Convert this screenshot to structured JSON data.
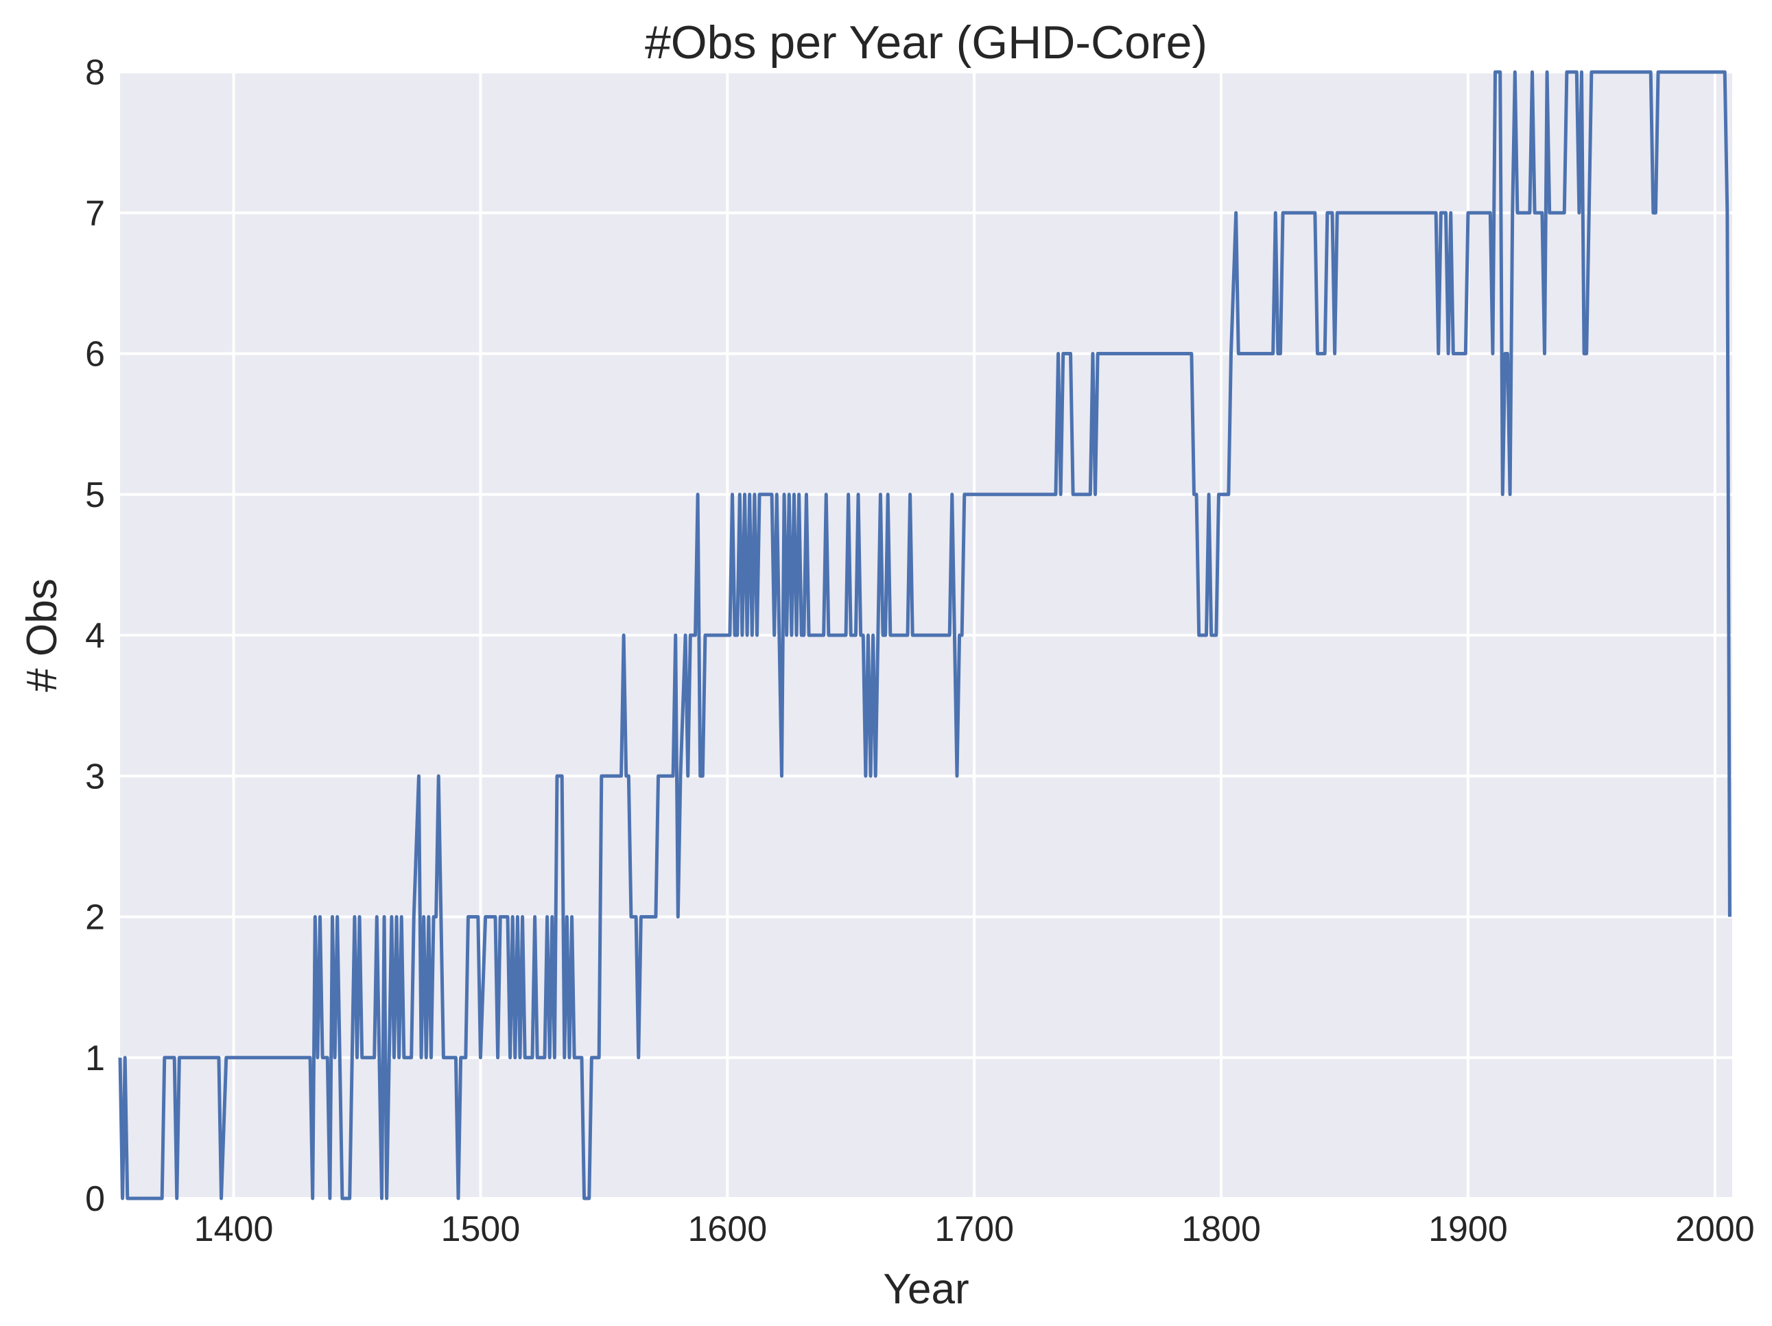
{
  "colors": {
    "plot_background": "#eaeaf2",
    "grid": "#ffffff",
    "line": "#4c72b0",
    "text": "#262626"
  },
  "chart_data": {
    "type": "line",
    "title": "#Obs per Year (GHD-Core)",
    "xlabel": "Year",
    "ylabel": "# Obs",
    "xlim": [
      1354,
      2007
    ],
    "ylim": [
      0,
      8
    ],
    "grid": true,
    "xticks": [
      1400,
      1500,
      1600,
      1700,
      1800,
      1900,
      2000
    ],
    "yticks": [
      0,
      1,
      2,
      3,
      4,
      5,
      6,
      7,
      8
    ],
    "series": [
      {
        "values": [
          [
            1354,
            1
          ],
          [
            1355,
            0
          ],
          [
            1356,
            1
          ],
          [
            1357,
            0
          ],
          [
            1371,
            0
          ],
          [
            1372,
            1
          ],
          [
            1376,
            1
          ],
          [
            1377,
            0
          ],
          [
            1378,
            1
          ],
          [
            1394,
            1
          ],
          [
            1395,
            0
          ],
          [
            1397,
            1
          ],
          [
            1431,
            1
          ],
          [
            1432,
            0
          ],
          [
            1433,
            2
          ],
          [
            1434,
            1
          ],
          [
            1435,
            2
          ],
          [
            1436,
            1
          ],
          [
            1438,
            1
          ],
          [
            1439,
            0
          ],
          [
            1440,
            2
          ],
          [
            1441,
            1
          ],
          [
            1442,
            2
          ],
          [
            1443,
            1
          ],
          [
            1444,
            0
          ],
          [
            1447,
            0
          ],
          [
            1448,
            1
          ],
          [
            1449,
            2
          ],
          [
            1450,
            1
          ],
          [
            1451,
            2
          ],
          [
            1452,
            1
          ],
          [
            1457,
            1
          ],
          [
            1458,
            2
          ],
          [
            1459,
            1
          ],
          [
            1460,
            0
          ],
          [
            1461,
            2
          ],
          [
            1462,
            0
          ],
          [
            1463,
            1
          ],
          [
            1464,
            2
          ],
          [
            1465,
            1
          ],
          [
            1466,
            2
          ],
          [
            1467,
            1
          ],
          [
            1468,
            2
          ],
          [
            1469,
            1
          ],
          [
            1472,
            1
          ],
          [
            1473,
            2
          ],
          [
            1475,
            3
          ],
          [
            1476,
            1
          ],
          [
            1477,
            2
          ],
          [
            1478,
            1
          ],
          [
            1479,
            2
          ],
          [
            1480,
            1
          ],
          [
            1481,
            2
          ],
          [
            1482,
            2
          ],
          [
            1483,
            3
          ],
          [
            1484,
            2
          ],
          [
            1485,
            1
          ],
          [
            1490,
            1
          ],
          [
            1491,
            0
          ],
          [
            1492,
            1
          ],
          [
            1494,
            1
          ],
          [
            1495,
            2
          ],
          [
            1499,
            2
          ],
          [
            1500,
            1
          ],
          [
            1502,
            2
          ],
          [
            1506,
            2
          ],
          [
            1507,
            1
          ],
          [
            1508,
            2
          ],
          [
            1511,
            2
          ],
          [
            1512,
            1
          ],
          [
            1513,
            2
          ],
          [
            1514,
            1
          ],
          [
            1515,
            2
          ],
          [
            1516,
            1
          ],
          [
            1517,
            2
          ],
          [
            1518,
            1
          ],
          [
            1521,
            1
          ],
          [
            1522,
            2
          ],
          [
            1523,
            1
          ],
          [
            1526,
            1
          ],
          [
            1527,
            2
          ],
          [
            1528,
            1
          ],
          [
            1529,
            2
          ],
          [
            1530,
            1
          ],
          [
            1531,
            3
          ],
          [
            1533,
            3
          ],
          [
            1534,
            1
          ],
          [
            1535,
            2
          ],
          [
            1536,
            1
          ],
          [
            1537,
            2
          ],
          [
            1538,
            1
          ],
          [
            1541,
            1
          ],
          [
            1542,
            0
          ],
          [
            1544,
            0
          ],
          [
            1545,
            1
          ],
          [
            1548,
            1
          ],
          [
            1549,
            3
          ],
          [
            1557,
            3
          ],
          [
            1558,
            4
          ],
          [
            1559,
            3
          ],
          [
            1560,
            3
          ],
          [
            1561,
            2
          ],
          [
            1563,
            2
          ],
          [
            1564,
            1
          ],
          [
            1565,
            2
          ],
          [
            1571,
            2
          ],
          [
            1572,
            3
          ],
          [
            1578,
            3
          ],
          [
            1579,
            4
          ],
          [
            1580,
            2
          ],
          [
            1581,
            3
          ],
          [
            1583,
            4
          ],
          [
            1584,
            3
          ],
          [
            1585,
            4
          ],
          [
            1587,
            4
          ],
          [
            1588,
            5
          ],
          [
            1589,
            3
          ],
          [
            1590,
            3
          ],
          [
            1591,
            4
          ],
          [
            1601,
            4
          ],
          [
            1602,
            5
          ],
          [
            1603,
            4
          ],
          [
            1604,
            4
          ],
          [
            1605,
            5
          ],
          [
            1606,
            4
          ],
          [
            1607,
            5
          ],
          [
            1608,
            4
          ],
          [
            1609,
            5
          ],
          [
            1610,
            4
          ],
          [
            1611,
            5
          ],
          [
            1612,
            4
          ],
          [
            1613,
            5
          ],
          [
            1618,
            5
          ],
          [
            1619,
            4
          ],
          [
            1620,
            5
          ],
          [
            1621,
            4
          ],
          [
            1622,
            3
          ],
          [
            1623,
            5
          ],
          [
            1624,
            4
          ],
          [
            1625,
            5
          ],
          [
            1626,
            4
          ],
          [
            1627,
            5
          ],
          [
            1628,
            4
          ],
          [
            1629,
            5
          ],
          [
            1630,
            4
          ],
          [
            1631,
            4
          ],
          [
            1632,
            5
          ],
          [
            1633,
            4
          ],
          [
            1639,
            4
          ],
          [
            1640,
            5
          ],
          [
            1641,
            4
          ],
          [
            1648,
            4
          ],
          [
            1649,
            5
          ],
          [
            1650,
            4
          ],
          [
            1652,
            4
          ],
          [
            1653,
            5
          ],
          [
            1654,
            4
          ],
          [
            1655,
            4
          ],
          [
            1656,
            3
          ],
          [
            1657,
            4
          ],
          [
            1658,
            3
          ],
          [
            1659,
            4
          ],
          [
            1660,
            3
          ],
          [
            1661,
            4
          ],
          [
            1662,
            5
          ],
          [
            1663,
            4
          ],
          [
            1664,
            4
          ],
          [
            1665,
            5
          ],
          [
            1666,
            4
          ],
          [
            1673,
            4
          ],
          [
            1674,
            5
          ],
          [
            1675,
            4
          ],
          [
            1690,
            4
          ],
          [
            1691,
            5
          ],
          [
            1692,
            4
          ],
          [
            1693,
            3
          ],
          [
            1694,
            4
          ],
          [
            1695,
            4
          ],
          [
            1696,
            5
          ],
          [
            1733,
            5
          ],
          [
            1734,
            6
          ],
          [
            1735,
            5
          ],
          [
            1736,
            6
          ],
          [
            1739,
            6
          ],
          [
            1740,
            5
          ],
          [
            1747,
            5
          ],
          [
            1748,
            6
          ],
          [
            1749,
            5
          ],
          [
            1750,
            6
          ],
          [
            1788,
            6
          ],
          [
            1789,
            5
          ],
          [
            1790,
            5
          ],
          [
            1791,
            4
          ],
          [
            1794,
            4
          ],
          [
            1795,
            5
          ],
          [
            1796,
            4
          ],
          [
            1798,
            4
          ],
          [
            1799,
            5
          ],
          [
            1803,
            5
          ],
          [
            1804,
            6
          ],
          [
            1806,
            7
          ],
          [
            1807,
            6
          ],
          [
            1821,
            6
          ],
          [
            1822,
            7
          ],
          [
            1823,
            6
          ],
          [
            1824,
            6
          ],
          [
            1825,
            7
          ],
          [
            1838,
            7
          ],
          [
            1839,
            6
          ],
          [
            1842,
            6
          ],
          [
            1843,
            7
          ],
          [
            1845,
            7
          ],
          [
            1846,
            6
          ],
          [
            1847,
            7
          ],
          [
            1887,
            7
          ],
          [
            1888,
            6
          ],
          [
            1889,
            7
          ],
          [
            1891,
            7
          ],
          [
            1892,
            6
          ],
          [
            1893,
            7
          ],
          [
            1894,
            6
          ],
          [
            1899,
            6
          ],
          [
            1900,
            7
          ],
          [
            1909,
            7
          ],
          [
            1910,
            6
          ],
          [
            1911,
            8
          ],
          [
            1913,
            8
          ],
          [
            1914,
            5
          ],
          [
            1915,
            6
          ],
          [
            1916,
            6
          ],
          [
            1917,
            5
          ],
          [
            1918,
            7
          ],
          [
            1919,
            8
          ],
          [
            1920,
            7
          ],
          [
            1925,
            7
          ],
          [
            1926,
            8
          ],
          [
            1927,
            7
          ],
          [
            1930,
            7
          ],
          [
            1931,
            6
          ],
          [
            1932,
            8
          ],
          [
            1933,
            7
          ],
          [
            1939,
            7
          ],
          [
            1940,
            8
          ],
          [
            1944,
            8
          ],
          [
            1945,
            7
          ],
          [
            1946,
            8
          ],
          [
            1947,
            6
          ],
          [
            1948,
            6
          ],
          [
            1949,
            7
          ],
          [
            1950,
            8
          ],
          [
            1974,
            8
          ],
          [
            1975,
            7
          ],
          [
            1976,
            7
          ],
          [
            1977,
            8
          ],
          [
            2004,
            8
          ],
          [
            2005,
            7
          ],
          [
            2006,
            2
          ]
        ]
      }
    ]
  }
}
